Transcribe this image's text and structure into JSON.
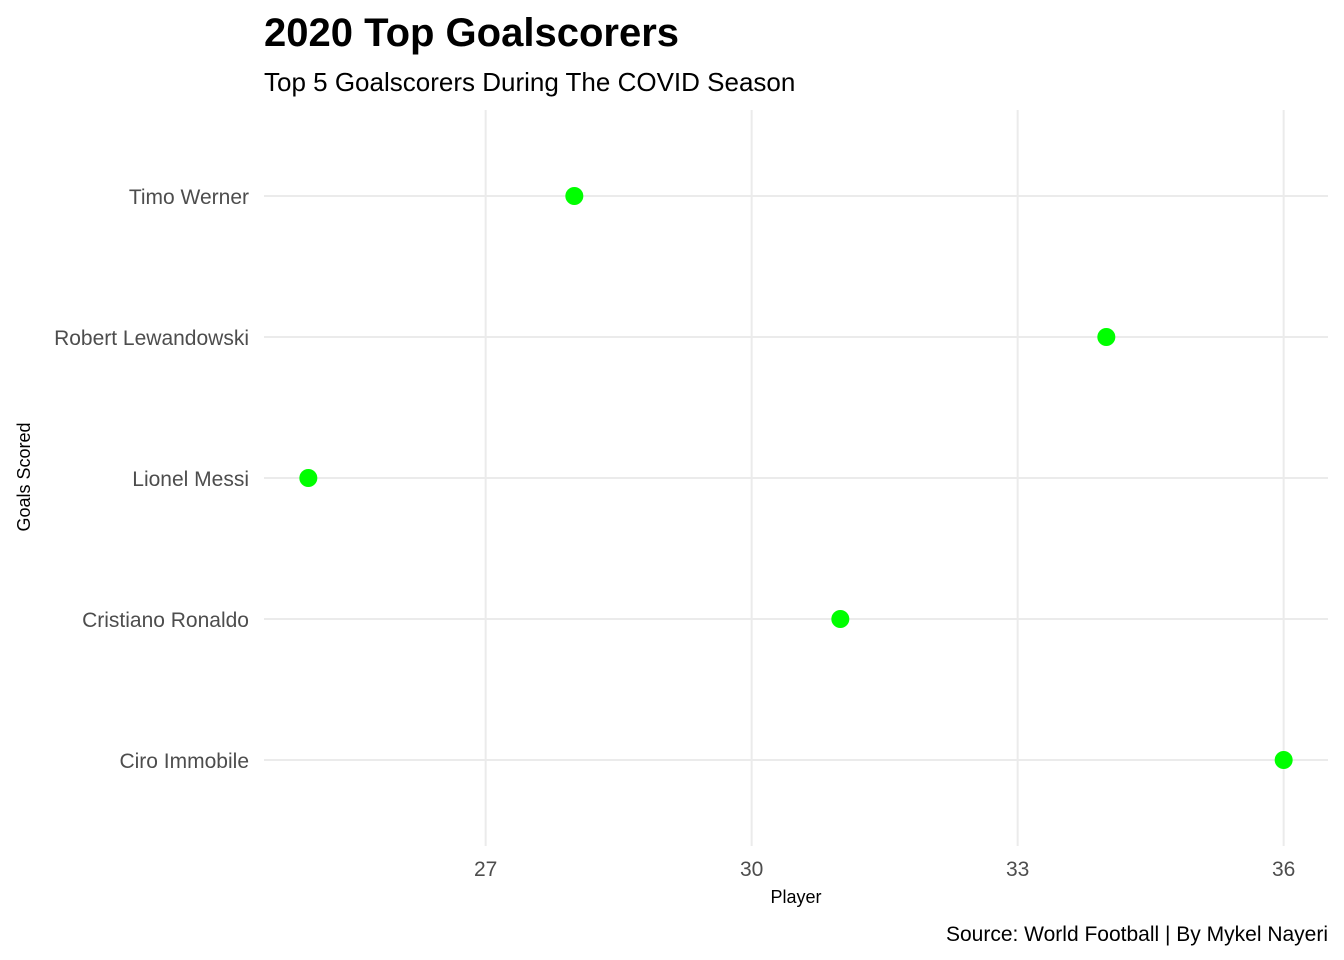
{
  "chart_data": {
    "type": "scatter",
    "title": "2020 Top Goalscorers",
    "subtitle": "Top 5 Goalscorers During The COVID Season",
    "caption": "Source: World Football | By Mykel Nayeri",
    "xlabel": "Player",
    "ylabel": "Goals Scored",
    "xlim": [
      24.5,
      36.5
    ],
    "xticks": [
      27,
      30,
      33,
      36
    ],
    "categories": [
      "Timo Werner",
      "Robert Lewandowski",
      "Lionel Messi",
      "Cristiano Ronaldo",
      "Ciro Immobile"
    ],
    "values": [
      28,
      34,
      25,
      31,
      36
    ],
    "point_color": "#00ff00",
    "grid": true,
    "legend": "none"
  }
}
